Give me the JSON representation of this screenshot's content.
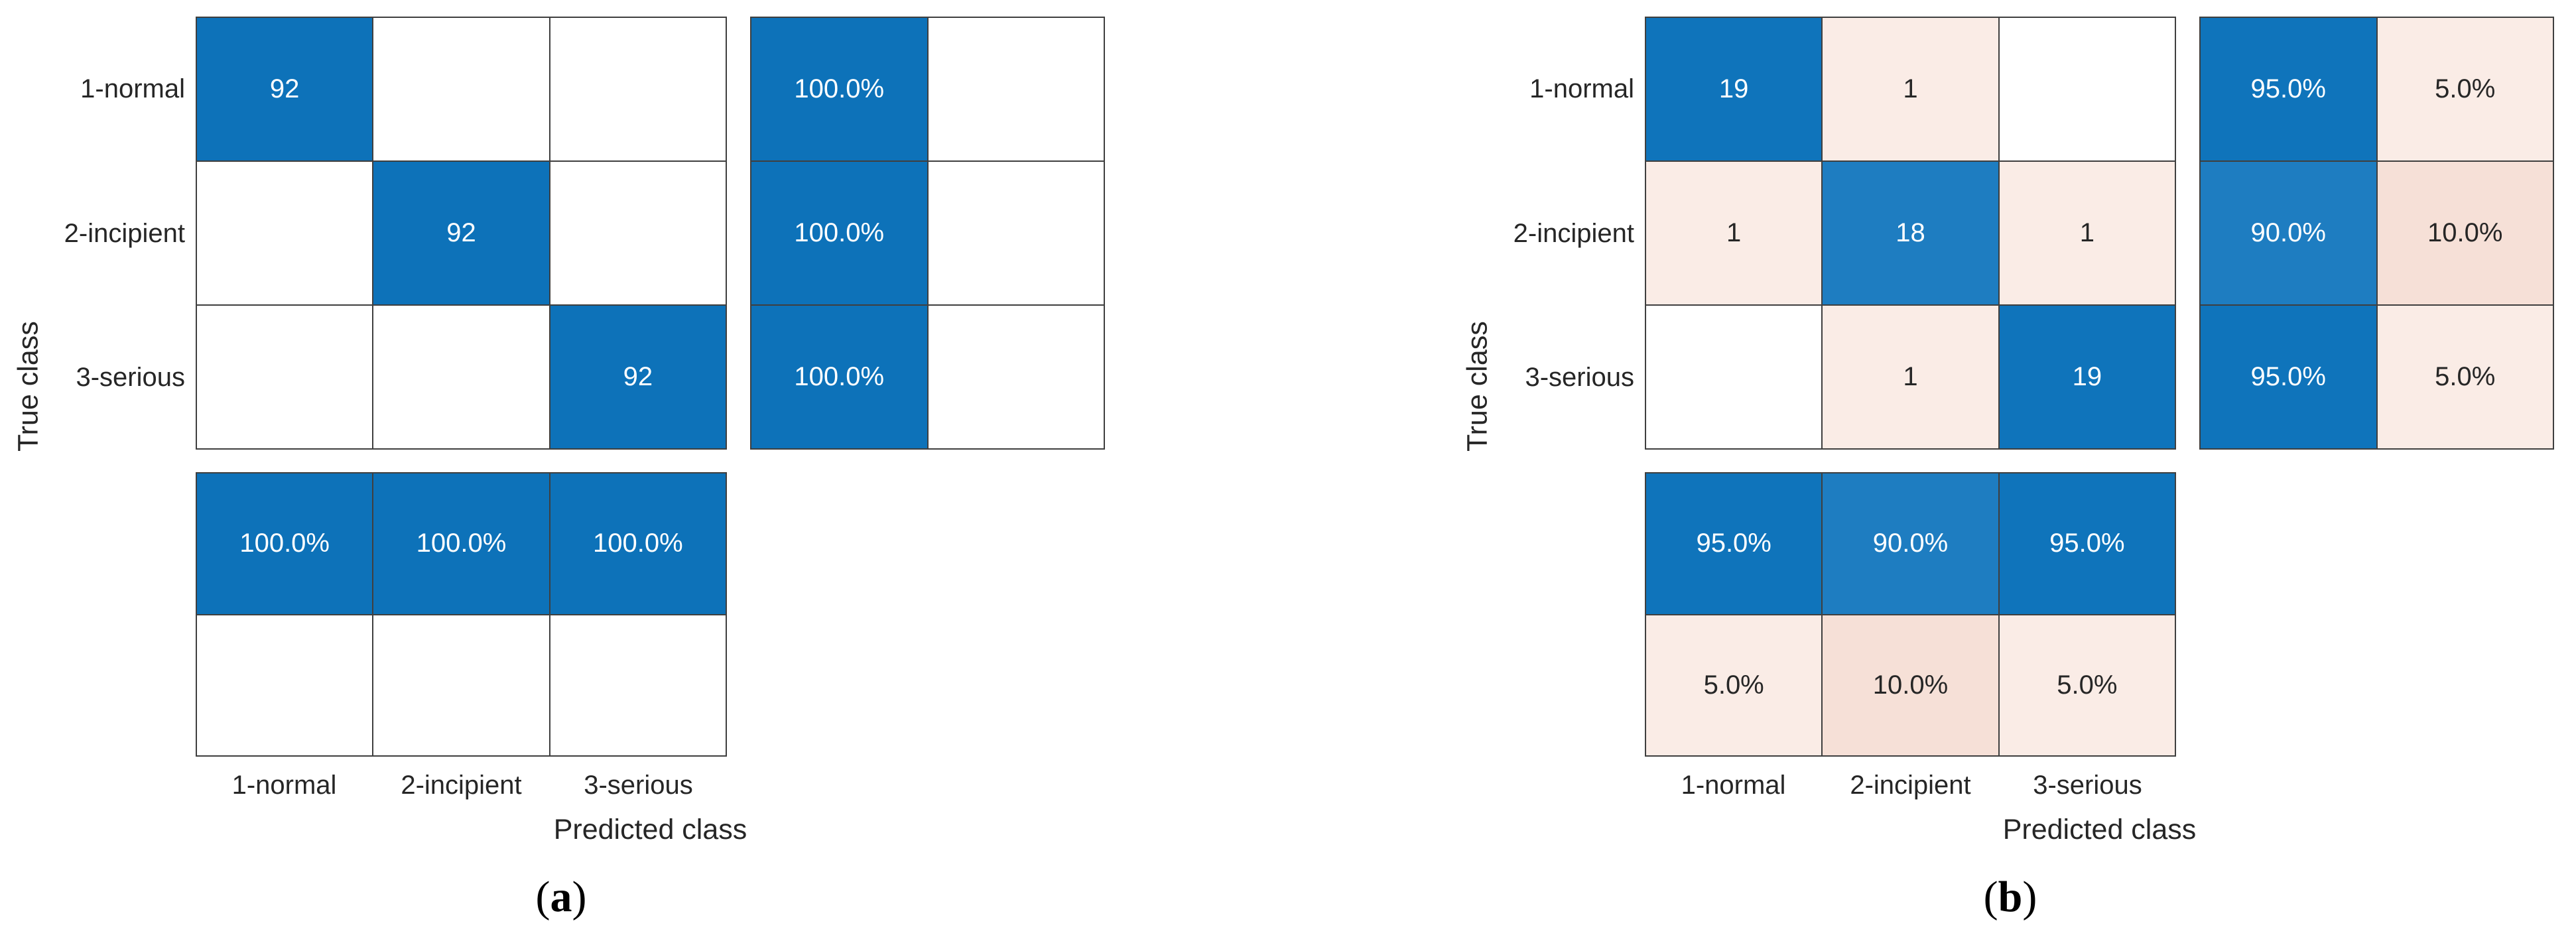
{
  "palette": {
    "diag_blue_100": "#0d72b9",
    "diag_blue_95": "#0f74bb",
    "diag_blue_90": "#1e7dc1",
    "off_pink_5": "#faece6",
    "off_pink_10": "#f6e0d7",
    "empty_white": "#ffffff",
    "grid_line": "#3f3f3f",
    "label_text": "#262626",
    "on_blue": "#ffffff",
    "on_light": "#262626"
  },
  "charts": [
    {
      "caption_prefix": "(",
      "caption_letter": "a",
      "caption_suffix": ")",
      "ylabel": "True class",
      "xlabel": "Predicted class",
      "row_labels": [
        "1-normal",
        "2-incipient",
        "3-serious"
      ],
      "col_labels": [
        "1-normal",
        "2-incipient",
        "3-serious"
      ],
      "main": {
        "cells": [
          {
            "text": "92",
            "bg": "diag_blue_100",
            "fg": "on_blue"
          },
          {
            "text": "",
            "bg": "empty_white",
            "fg": "on_light"
          },
          {
            "text": "",
            "bg": "empty_white",
            "fg": "on_light"
          },
          {
            "text": "",
            "bg": "empty_white",
            "fg": "on_light"
          },
          {
            "text": "92",
            "bg": "diag_blue_100",
            "fg": "on_blue"
          },
          {
            "text": "",
            "bg": "empty_white",
            "fg": "on_light"
          },
          {
            "text": "",
            "bg": "empty_white",
            "fg": "on_light"
          },
          {
            "text": "",
            "bg": "empty_white",
            "fg": "on_light"
          },
          {
            "text": "92",
            "bg": "diag_blue_100",
            "fg": "on_blue"
          }
        ]
      },
      "row_summary": {
        "cells": [
          {
            "text": "100.0%",
            "bg": "diag_blue_100",
            "fg": "on_blue"
          },
          {
            "text": "",
            "bg": "empty_white",
            "fg": "on_light"
          },
          {
            "text": "100.0%",
            "bg": "diag_blue_100",
            "fg": "on_blue"
          },
          {
            "text": "",
            "bg": "empty_white",
            "fg": "on_light"
          },
          {
            "text": "100.0%",
            "bg": "diag_blue_100",
            "fg": "on_blue"
          },
          {
            "text": "",
            "bg": "empty_white",
            "fg": "on_light"
          }
        ]
      },
      "col_summary": {
        "cells": [
          {
            "text": "100.0%",
            "bg": "diag_blue_100",
            "fg": "on_blue"
          },
          {
            "text": "100.0%",
            "bg": "diag_blue_100",
            "fg": "on_blue"
          },
          {
            "text": "100.0%",
            "bg": "diag_blue_100",
            "fg": "on_blue"
          },
          {
            "text": "",
            "bg": "empty_white",
            "fg": "on_light"
          },
          {
            "text": "",
            "bg": "empty_white",
            "fg": "on_light"
          },
          {
            "text": "",
            "bg": "empty_white",
            "fg": "on_light"
          }
        ]
      }
    },
    {
      "caption_prefix": "(",
      "caption_letter": "b",
      "caption_suffix": ")",
      "ylabel": "True class",
      "xlabel": "Predicted class",
      "row_labels": [
        "1-normal",
        "2-incipient",
        "3-serious"
      ],
      "col_labels": [
        "1-normal",
        "2-incipient",
        "3-serious"
      ],
      "main": {
        "cells": [
          {
            "text": "19",
            "bg": "diag_blue_95",
            "fg": "on_blue"
          },
          {
            "text": "1",
            "bg": "off_pink_5",
            "fg": "on_light"
          },
          {
            "text": "",
            "bg": "empty_white",
            "fg": "on_light"
          },
          {
            "text": "1",
            "bg": "off_pink_5",
            "fg": "on_light"
          },
          {
            "text": "18",
            "bg": "diag_blue_90",
            "fg": "on_blue"
          },
          {
            "text": "1",
            "bg": "off_pink_5",
            "fg": "on_light"
          },
          {
            "text": "",
            "bg": "empty_white",
            "fg": "on_light"
          },
          {
            "text": "1",
            "bg": "off_pink_5",
            "fg": "on_light"
          },
          {
            "text": "19",
            "bg": "diag_blue_95",
            "fg": "on_blue"
          }
        ]
      },
      "row_summary": {
        "cells": [
          {
            "text": "95.0%",
            "bg": "diag_blue_95",
            "fg": "on_blue"
          },
          {
            "text": "5.0%",
            "bg": "off_pink_5",
            "fg": "on_light"
          },
          {
            "text": "90.0%",
            "bg": "diag_blue_90",
            "fg": "on_blue"
          },
          {
            "text": "10.0%",
            "bg": "off_pink_10",
            "fg": "on_light"
          },
          {
            "text": "95.0%",
            "bg": "diag_blue_95",
            "fg": "on_blue"
          },
          {
            "text": "5.0%",
            "bg": "off_pink_5",
            "fg": "on_light"
          }
        ]
      },
      "col_summary": {
        "cells": [
          {
            "text": "95.0%",
            "bg": "diag_blue_95",
            "fg": "on_blue"
          },
          {
            "text": "90.0%",
            "bg": "diag_blue_90",
            "fg": "on_blue"
          },
          {
            "text": "95.0%",
            "bg": "diag_blue_95",
            "fg": "on_blue"
          },
          {
            "text": "5.0%",
            "bg": "off_pink_5",
            "fg": "on_light"
          },
          {
            "text": "10.0%",
            "bg": "off_pink_10",
            "fg": "on_light"
          },
          {
            "text": "5.0%",
            "bg": "off_pink_5",
            "fg": "on_light"
          }
        ]
      }
    }
  ],
  "chart_data": [
    {
      "type": "heatmap",
      "title": "(a)",
      "xlabel": "Predicted class",
      "ylabel": "True class",
      "categories": [
        "1-normal",
        "2-incipient",
        "3-serious"
      ],
      "matrix_counts": [
        [
          92,
          0,
          0
        ],
        [
          0,
          92,
          0
        ],
        [
          0,
          0,
          92
        ]
      ],
      "row_summary_correct_pct": [
        100.0,
        100.0,
        100.0
      ],
      "row_summary_incorrect_pct": [
        0,
        0,
        0
      ],
      "col_summary_correct_pct": [
        100.0,
        100.0,
        100.0
      ],
      "col_summary_incorrect_pct": [
        0,
        0,
        0
      ],
      "notes": "zero cells rendered blank; diagonal cells blue; grid on; no legend"
    },
    {
      "type": "heatmap",
      "title": "(b)",
      "xlabel": "Predicted class",
      "ylabel": "True class",
      "categories": [
        "1-normal",
        "2-incipient",
        "3-serious"
      ],
      "matrix_counts": [
        [
          19,
          1,
          0
        ],
        [
          1,
          18,
          1
        ],
        [
          0,
          1,
          19
        ]
      ],
      "row_summary_correct_pct": [
        95.0,
        90.0,
        95.0
      ],
      "row_summary_incorrect_pct": [
        5.0,
        10.0,
        5.0
      ],
      "col_summary_correct_pct": [
        95.0,
        90.0,
        95.0
      ],
      "col_summary_incorrect_pct": [
        5.0,
        10.0,
        5.0
      ],
      "notes": "zero cells rendered blank; diagonal cells blue, off-diagonal nonzero cells light pink; grid on; no legend"
    }
  ]
}
